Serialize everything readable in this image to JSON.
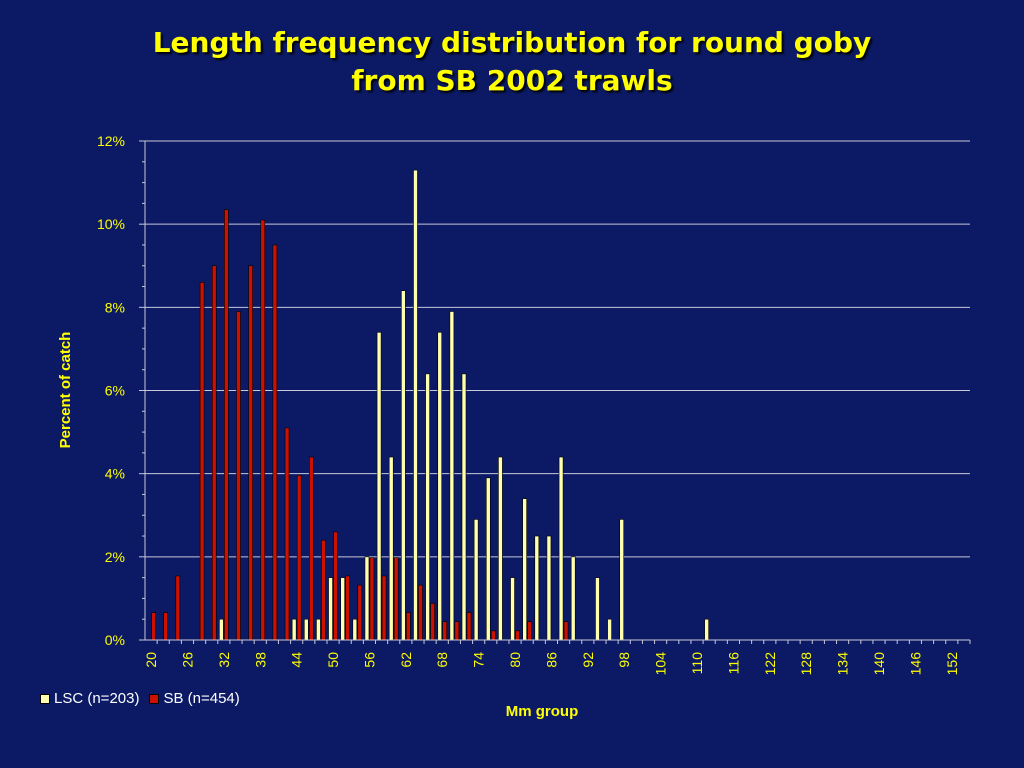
{
  "title": {
    "line1": "Length frequency distribution for round goby",
    "line2": "from SB 2002 trawls"
  },
  "colors": {
    "background": "#0c1a66",
    "text": "#ffff00",
    "lsc": "#ffffb0",
    "sb": "#cc1100",
    "grid": "#c8c8d8"
  },
  "chart_data": {
    "type": "bar",
    "ylabel": "Percent of catch",
    "xlabel": "Mm group",
    "ylim": [
      0,
      12
    ],
    "y_ticks": [
      "0%",
      "2%",
      "4%",
      "6%",
      "8%",
      "10%",
      "12%"
    ],
    "grid": true,
    "legend_position": "bottom-left",
    "categories": [
      "20",
      "22",
      "24",
      "26",
      "28",
      "30",
      "32",
      "34",
      "36",
      "38",
      "40",
      "42",
      "44",
      "46",
      "48",
      "50",
      "52",
      "54",
      "56",
      "58",
      "60",
      "62",
      "64",
      "66",
      "68",
      "70",
      "72",
      "74",
      "76",
      "78",
      "80",
      "82",
      "84",
      "86",
      "88",
      "90",
      "92",
      "94",
      "96",
      "98",
      "100",
      "102",
      "104",
      "106",
      "108",
      "110",
      "112",
      "114",
      "116",
      "118",
      "120",
      "122",
      "124",
      "126",
      "128",
      "130",
      "132",
      "134",
      "136",
      "138",
      "140",
      "142",
      "144",
      "146",
      "148",
      "150",
      "152",
      "154"
    ],
    "x_tick_labels": [
      "20",
      "26",
      "32",
      "38",
      "44",
      "50",
      "56",
      "62",
      "68",
      "74",
      "80",
      "86",
      "92",
      "98",
      "104",
      "110",
      "116",
      "122",
      "128",
      "134",
      "140",
      "146",
      "152"
    ],
    "series": [
      {
        "name": "LSC (n=203)",
        "values": [
          0,
          0,
          0,
          0,
          0,
          0,
          0.5,
          0,
          0,
          0,
          0,
          0,
          0.5,
          0.5,
          0.5,
          1.5,
          1.5,
          0.5,
          2.0,
          7.4,
          4.4,
          8.4,
          11.3,
          6.4,
          7.4,
          7.9,
          6.4,
          2.9,
          3.9,
          4.4,
          1.5,
          3.4,
          2.5,
          2.5,
          4.4,
          2.0,
          0,
          1.5,
          0.5,
          2.9,
          0,
          0,
          0,
          0,
          0,
          0,
          0.5,
          0,
          0,
          0,
          0,
          0,
          0,
          0,
          0,
          0,
          0,
          0,
          0,
          0,
          0,
          0,
          0,
          0,
          0,
          0,
          0,
          0
        ]
      },
      {
        "name": "SB (n=454)",
        "values": [
          0.66,
          0.66,
          1.54,
          0,
          8.6,
          9.0,
          10.35,
          7.9,
          9.0,
          10.1,
          9.5,
          5.1,
          3.96,
          4.4,
          2.4,
          2.6,
          1.54,
          1.32,
          1.98,
          1.54,
          1.98,
          0.66,
          1.32,
          0.88,
          0.44,
          0.44,
          0.66,
          0,
          0.22,
          0,
          0.22,
          0.44,
          0,
          0,
          0.44,
          0,
          0,
          0,
          0,
          0,
          0,
          0,
          0,
          0,
          0,
          0,
          0,
          0,
          0,
          0,
          0,
          0,
          0,
          0,
          0,
          0,
          0,
          0,
          0,
          0,
          0,
          0,
          0,
          0,
          0,
          0,
          0,
          0
        ]
      }
    ]
  }
}
